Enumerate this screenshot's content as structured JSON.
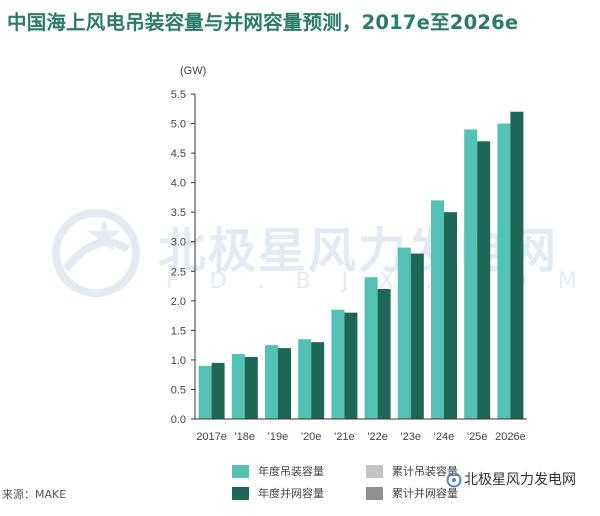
{
  "title": "中国海上风电吊装容量与并网容量预测，2017e至2026e",
  "source": "来源：MAKE",
  "watermark": {
    "name": "北极星风力发电网",
    "url": "F D . B J X . C O M . C N"
  },
  "brand": "北极星风力发电网",
  "colors": {
    "installed": "#54c1b5",
    "grid": "#1e6756",
    "cumulative_installed": "#c3c3c3",
    "cumulative_grid": "#8f8f8f"
  },
  "legend": [
    {
      "label": "年度吊装容量",
      "color_key": "installed"
    },
    {
      "label": "累计吊装容量",
      "color_key": "cumulative_installed"
    },
    {
      "label": "年度并网容量",
      "color_key": "grid"
    },
    {
      "label": "累计并网容量",
      "color_key": "cumulative_grid"
    }
  ],
  "chart_data": {
    "type": "bar",
    "title": "中国海上风电吊装容量与并网容量预测，2017e至2026e",
    "unit": "(GW)",
    "categories": [
      "2017e",
      "'18e",
      "'19e",
      "'20e",
      "'21e",
      "'22e",
      "'23e",
      "'24e",
      "'25e",
      "2026e"
    ],
    "series": [
      {
        "name": "年度吊装容量",
        "color_key": "installed",
        "values": [
          0.9,
          1.1,
          1.25,
          1.35,
          1.85,
          2.4,
          2.9,
          3.7,
          4.9,
          5.0
        ]
      },
      {
        "name": "年度并网容量",
        "color_key": "grid",
        "values": [
          0.95,
          1.05,
          1.2,
          1.3,
          1.8,
          2.2,
          2.8,
          3.5,
          4.7,
          5.2
        ]
      }
    ],
    "ylim": [
      0,
      5.5
    ],
    "yticks": [
      "0.0",
      "0.5",
      "1.0",
      "1.5",
      "2.0",
      "2.5",
      "3.0",
      "3.5",
      "4.0",
      "4.5",
      "5.0",
      "5.5"
    ],
    "legend_position": "bottom",
    "grid": false
  }
}
